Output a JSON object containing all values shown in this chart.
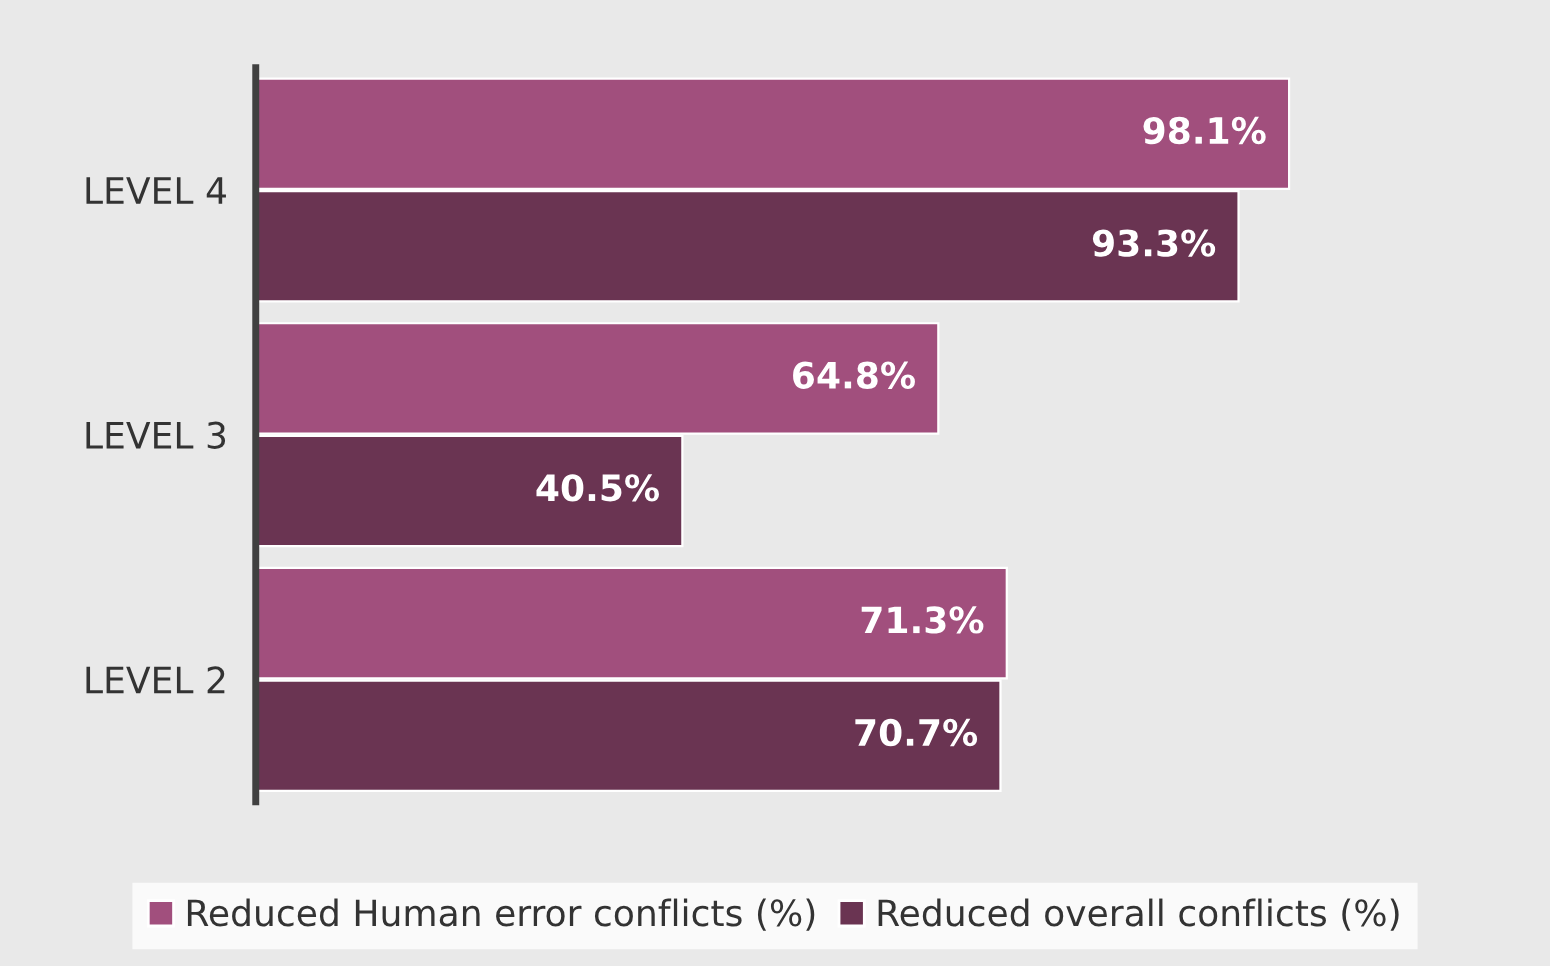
{
  "chart_data": {
    "type": "bar",
    "orientation": "horizontal",
    "categories": [
      "LEVEL 4",
      "LEVEL 3",
      "LEVEL 2"
    ],
    "series": [
      {
        "name": "Reduced Human error conflicts (%)",
        "color": "#a14f7d",
        "values": [
          98.1,
          64.8,
          71.3
        ],
        "value_labels": [
          "98.1%",
          "64.8%",
          "71.3%"
        ]
      },
      {
        "name": "Reduced overall conflicts (%)",
        "color": "#6a3452",
        "values": [
          93.3,
          40.5,
          70.7
        ],
        "value_labels": [
          "93.3%",
          "40.5%",
          "70.7%"
        ]
      }
    ],
    "tick_labels": "y",
    "grid": false,
    "legend": "bottom"
  }
}
